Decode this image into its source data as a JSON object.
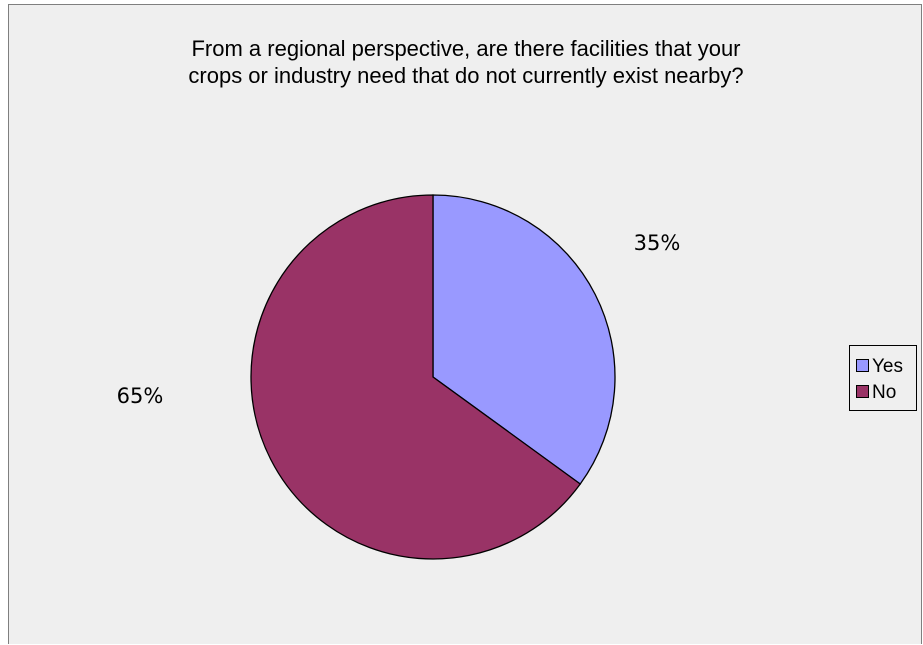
{
  "chart_data": {
    "type": "pie",
    "title": [
      "From a regional perspective, are there facilities that your",
      "crops or industry need that do not currently exist nearby?"
    ],
    "categories": [
      "Yes",
      "No"
    ],
    "values": [
      35,
      65
    ],
    "data_labels": [
      "35%",
      "65%"
    ],
    "colors": [
      "#9999ff",
      "#993366"
    ],
    "legend_position": "right"
  }
}
